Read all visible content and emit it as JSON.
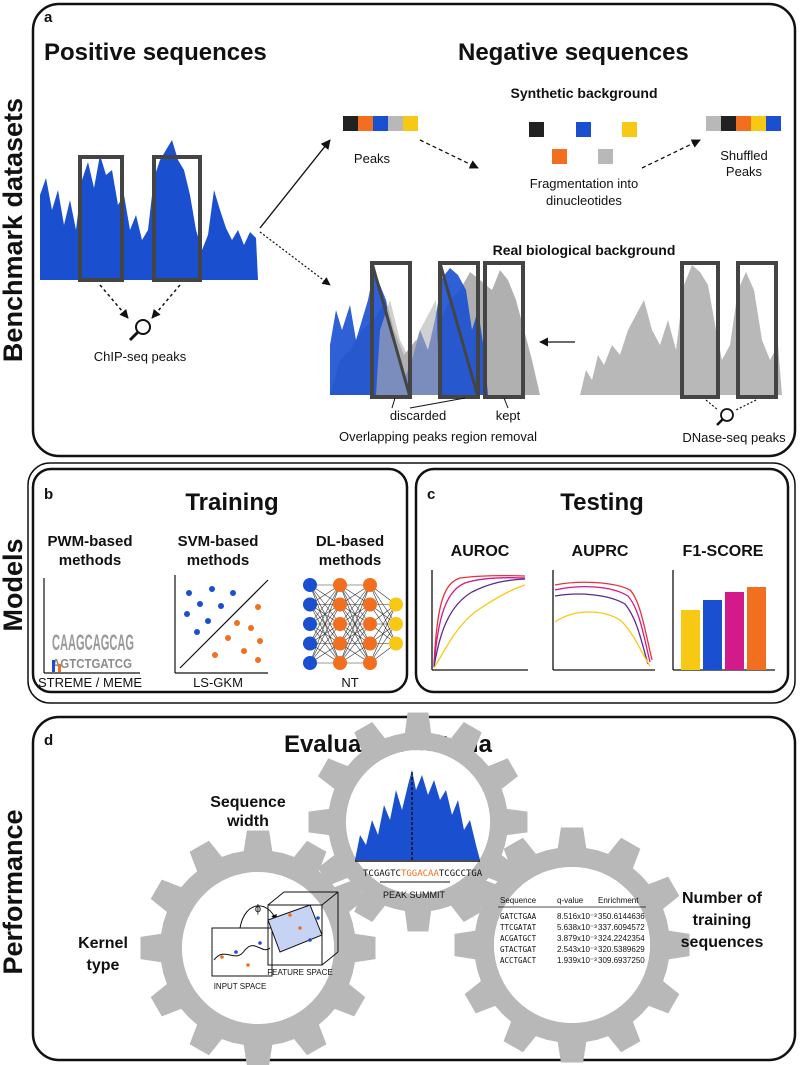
{
  "side_labels": {
    "benchmark": "Benchmark datasets",
    "models": "Models",
    "performance": "Performance"
  },
  "panel_a": {
    "letter": "a",
    "positive_title": "Positive sequences",
    "negative_title": "Negative sequences",
    "synthetic_title": "Synthetic background",
    "peaks": "Peaks",
    "fragmentation_1": "Fragmentation into",
    "fragmentation_2": "dinucleotides",
    "shuffled_1": "Shuffled",
    "shuffled_2": "Peaks",
    "real_title": "Real biological background",
    "chip_peaks": "ChIP-seq peaks",
    "discarded": "discarded",
    "kept": "kept",
    "overlap_removal": "Overlapping peaks region removal",
    "dnase_peaks": "DNase-seq peaks"
  },
  "panel_b": {
    "letter": "b",
    "title": "Training",
    "pwm_1": "PWM-based",
    "pwm_2": "methods",
    "svm_1": "SVM-based",
    "svm_2": "methods",
    "dl_1": "DL-based",
    "dl_2": "methods",
    "streme": "STREME / MEME",
    "lsgkm": "LS-GKM",
    "nt": "NT"
  },
  "panel_c": {
    "letter": "c",
    "title": "Testing",
    "auroc": "AUROC",
    "auprc": "AUPRC",
    "f1": "F1-SCORE"
  },
  "panel_d": {
    "letter": "d",
    "title": "Evaluation criteria",
    "seq_width_1": "Sequence",
    "seq_width_2": "width",
    "kernel_1": "Kernel",
    "kernel_2": "type",
    "num_1": "Number of",
    "num_2": "training",
    "num_3": "sequences",
    "seq_a": "TCGAGTC",
    "seq_b": "TGGACAA",
    "seq_c": "TCGCCTGA",
    "peak_summit": "PEAK SUMMIT",
    "phi": "ϕ",
    "input_space": "INPUT SPACE",
    "feature_space": "FEATURE SPACE",
    "table": {
      "headers": [
        "Sequence",
        "q-value",
        "Enrichment"
      ],
      "rows": [
        [
          "GATCTGAA",
          "8.516x10⁻³",
          "350.6144636"
        ],
        [
          "TTCGATAT",
          "5.638x10⁻³",
          "337.6094572"
        ],
        [
          "ACGATGCT",
          "3.879x10⁻³",
          "324.2242354"
        ],
        [
          "GTACTGAT",
          "2.543x10⁻³",
          "320.5389629"
        ],
        [
          "ACCTGACT",
          "1.939x10⁻³",
          "309.6937250"
        ]
      ]
    }
  },
  "colors": {
    "signal_blue": "#1a4fd0",
    "gray": "#b8b8b8",
    "orange": "#f26f1f",
    "yellow": "#f7c915",
    "magenta": "#d21a8a",
    "red": "#e8323a",
    "purple": "#5a2a90",
    "black": "#222222"
  },
  "icons": {
    "magnifier": "magnifier-icon",
    "gear": "gear-icon"
  }
}
